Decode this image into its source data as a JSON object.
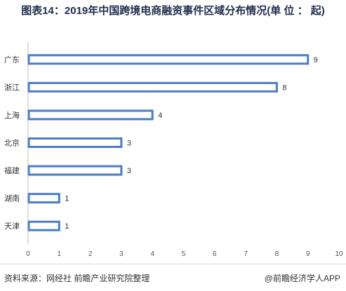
{
  "title": "图表14：2019年中国跨境电商融资事件区域分布情况(单 位 ： 起)",
  "chart_data": {
    "type": "bar",
    "orientation": "horizontal",
    "categories": [
      "广东",
      "浙江",
      "上海",
      "北京",
      "福建",
      "湖南",
      "天津"
    ],
    "values": [
      9,
      8,
      4,
      3,
      3,
      1,
      1
    ],
    "xlim": [
      0,
      10
    ],
    "xticks": [
      0,
      1,
      2,
      3,
      4,
      5,
      6,
      7,
      8,
      9,
      10
    ],
    "data_labels": true,
    "grid": false,
    "bar_color": "#4a7cc9"
  },
  "footer": {
    "source": "资料来源：网经社 前瞻产业研究院整理",
    "brand": "@前瞻经济学人APP"
  }
}
